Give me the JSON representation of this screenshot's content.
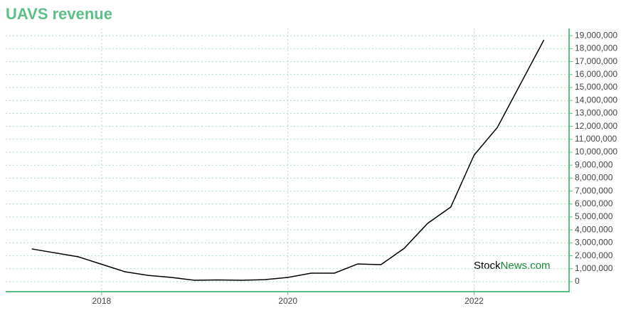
{
  "chart_data": {
    "type": "line",
    "title": "UAVS revenue",
    "watermark": {
      "part1": "Stock",
      "part2": "News.com"
    },
    "x": [
      2017.25,
      2017.75,
      2018.25,
      2018.5,
      2018.75,
      2019.0,
      2019.25,
      2019.5,
      2019.75,
      2020.0,
      2020.25,
      2020.5,
      2020.75,
      2021.0,
      2021.25,
      2021.5,
      2021.75,
      2022.0,
      2022.25,
      2022.75
    ],
    "series": [
      {
        "name": "Revenue",
        "color": "#000000",
        "values": [
          2530000,
          1920000,
          770000,
          490000,
          330000,
          110000,
          140000,
          110000,
          160000,
          330000,
          660000,
          660000,
          1370000,
          1320000,
          2580000,
          4500000,
          5770000,
          9780000,
          11920000,
          18680000
        ]
      }
    ],
    "xlim": [
      2016.97,
      2023.02
    ],
    "xticks": [
      2018,
      2020,
      2022
    ],
    "ylim": [
      -770000,
      19560000
    ],
    "yticks": [
      0,
      {
        "value": 1000000,
        "label": "1,000,000"
      },
      {
        "value": 2000000,
        "label": "2,000,000"
      },
      {
        "value": 3000000,
        "label": "3,000,000"
      },
      {
        "value": 4000000,
        "label": "4,000,000"
      },
      {
        "value": 5000000,
        "label": "5,000,000"
      },
      {
        "value": 6000000,
        "label": "6,000,000"
      },
      {
        "value": 7000000,
        "label": "7,000,000"
      },
      {
        "value": 8000000,
        "label": "8,000,000"
      },
      {
        "value": 9000000,
        "label": "9,000,000"
      },
      {
        "value": 10000000,
        "label": "10,000,000"
      },
      {
        "value": 11000000,
        "label": "11,000,000"
      },
      {
        "value": 12000000,
        "label": "12,000,000"
      },
      {
        "value": 13000000,
        "label": "13,000,000"
      },
      {
        "value": 14000000,
        "label": "14,000,000"
      },
      {
        "value": 15000000,
        "label": "15,000,000"
      },
      {
        "value": 16000000,
        "label": "16,000,000"
      },
      {
        "value": 17000000,
        "label": "17,000,000"
      },
      {
        "value": 18000000,
        "label": "18,000,000"
      },
      {
        "value": 19000000,
        "label": "19,000,000"
      }
    ],
    "grid": true,
    "y_axis_side": "right",
    "axis_color": "#5cbf86"
  }
}
